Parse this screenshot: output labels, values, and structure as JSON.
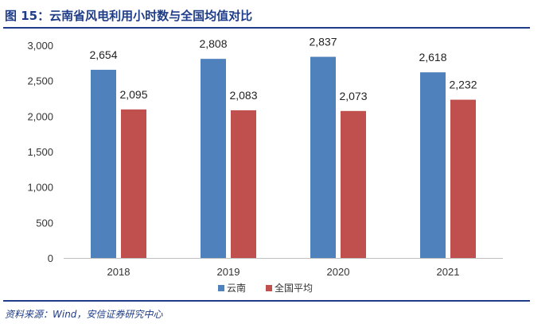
{
  "header": {
    "title": "图 15：云南省风电利用小时数与全国均值对比"
  },
  "footer": {
    "source": "资料来源：Wind，安信证券研究中心"
  },
  "colors": {
    "rule": "#1f3c88",
    "series_yunnan": "#4f81bd",
    "series_national": "#c0504d"
  },
  "chart_data": {
    "type": "bar",
    "categories": [
      "2018",
      "2019",
      "2020",
      "2021"
    ],
    "series": [
      {
        "name": "云南",
        "values": [
          2654,
          2808,
          2837,
          2618
        ],
        "labels": [
          "2,654",
          "2,808",
          "2,837",
          "2,618"
        ],
        "color": "#4f81bd"
      },
      {
        "name": "全国平均",
        "values": [
          2095,
          2083,
          2073,
          2232
        ],
        "labels": [
          "2,095",
          "2,083",
          "2,073",
          "2,232"
        ],
        "color": "#c0504d"
      }
    ],
    "ylim": [
      0,
      3000
    ],
    "yticks": [
      0,
      500,
      1000,
      1500,
      2000,
      2500,
      3000
    ],
    "ytick_labels": [
      "0",
      "500",
      "1,000",
      "1,500",
      "2,000",
      "2,500",
      "3,000"
    ],
    "grid": false,
    "legend": "bottom-center"
  }
}
